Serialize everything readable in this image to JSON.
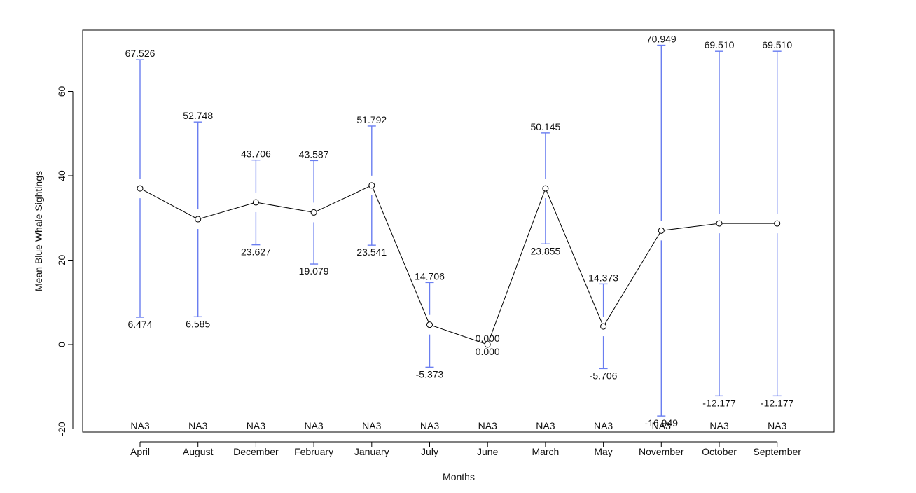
{
  "chart_data": {
    "type": "line",
    "title": "",
    "xlabel": "Months",
    "ylabel": "Mean Blue Whale Sightings",
    "ylim": [
      -20,
      72
    ],
    "yticks": [
      -20,
      0,
      20,
      40,
      60
    ],
    "ytick_labels": [
      "-20",
      "0",
      "20",
      "40",
      "60"
    ],
    "grid": false,
    "categories": [
      "April",
      "August",
      "December",
      "February",
      "January",
      "July",
      "June",
      "March",
      "May",
      "November",
      "October",
      "September"
    ],
    "means": [
      37.0,
      29.7,
      33.7,
      31.3,
      37.7,
      4.7,
      0.0,
      37.0,
      4.3,
      27.0,
      28.7,
      28.7
    ],
    "upper": [
      67.526,
      52.748,
      43.706,
      43.587,
      51.792,
      14.706,
      0.0,
      50.145,
      14.373,
      70.949,
      69.51,
      69.51
    ],
    "lower": [
      6.474,
      6.585,
      23.627,
      19.079,
      23.541,
      -5.373,
      0.0,
      23.855,
      -5.706,
      -16.949,
      -12.177,
      -12.177
    ],
    "upper_labels": [
      "67.526",
      "52.748",
      "43.706",
      "43.587",
      "51.792",
      "14.706",
      "0.000",
      "50.145",
      "14.373",
      "70.949",
      "69.510",
      "69.510"
    ],
    "lower_labels": [
      "6.474",
      "6.585",
      "23.627",
      "19.079",
      "23.541",
      "-5.373",
      "0.000",
      "23.855",
      "-5.706",
      "-16.949",
      "-12.177",
      "-12.177"
    ],
    "group_labels": [
      "NA3",
      "NA3",
      "NA3",
      "NA3",
      "NA3",
      "NA3",
      "NA3",
      "NA3",
      "NA3",
      "NA3",
      "NA3",
      "NA3"
    ],
    "colors": {
      "errorbar": "#6a7ef0",
      "line": "#000000",
      "frame": "#000000"
    }
  }
}
